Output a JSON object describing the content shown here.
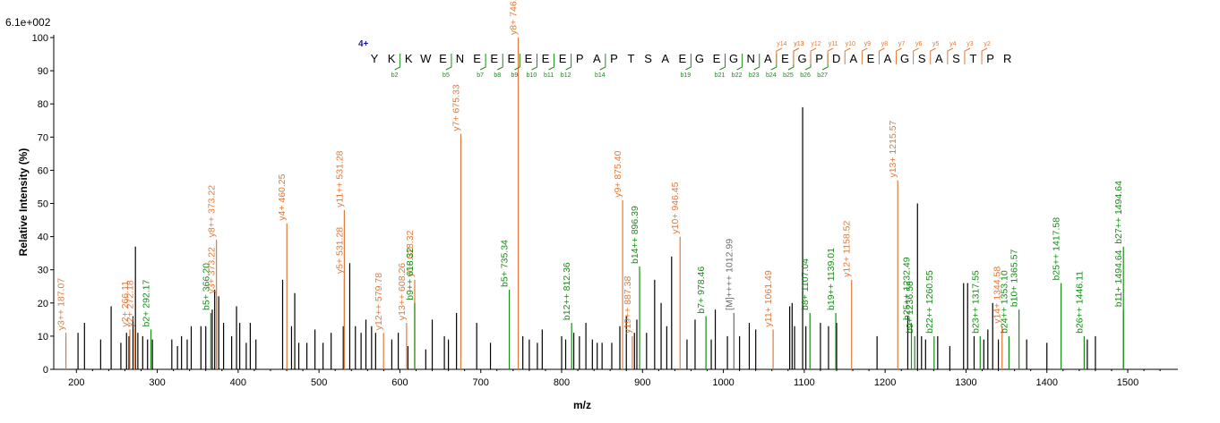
{
  "chart_data": {
    "type": "bar",
    "title": "",
    "xlabel": "m/z",
    "ylabel": "Relative  Intensity (%)",
    "scale_label": "6.1e+002",
    "xlim": [
      172,
      1562
    ],
    "ylim": [
      0,
      100
    ],
    "xticks": [
      200,
      300,
      400,
      500,
      600,
      700,
      800,
      900,
      1000,
      1100,
      1200,
      1300,
      1400,
      1500
    ],
    "yticks": [
      0,
      10,
      20,
      30,
      40,
      50,
      60,
      70,
      80,
      90,
      100
    ],
    "colors": {
      "y": "#e07a3a",
      "b": "#178c17",
      "other": "#000000",
      "precursor": "#6e6e6e",
      "charge": "#1a1aa6"
    },
    "annotated_peaks": [
      {
        "mz": 187.07,
        "intensity": 11,
        "type": "y",
        "label": "y3++ 187.07"
      },
      {
        "mz": 266.11,
        "intensity": 12,
        "type": "y",
        "label": "y2+ 266.11"
      },
      {
        "mz": 272.18,
        "intensity": 12,
        "type": "y",
        "label": "y2+ 272.18"
      },
      {
        "mz": 292.17,
        "intensity": 12,
        "type": "b",
        "label": "b2+ 292.17"
      },
      {
        "mz": 366.2,
        "intensity": 17,
        "type": "b",
        "label": "b5+ 366.20"
      },
      {
        "mz": 373.22,
        "intensity": 22,
        "type": "y",
        "label": "y3+ 373.22"
      },
      {
        "mz": 373.22,
        "intensity": 39,
        "type": "y",
        "label": "y8++ 373.22"
      },
      {
        "mz": 460.25,
        "intensity": 44,
        "type": "y",
        "label": "y4+ 460.25"
      },
      {
        "mz": 531.28,
        "intensity": 28,
        "type": "y",
        "label": "y5+ 531.28"
      },
      {
        "mz": 531.28,
        "intensity": 48,
        "type": "y",
        "label": "y11++ 531.28"
      },
      {
        "mz": 579.78,
        "intensity": 11,
        "type": "y",
        "label": "y12++ 579.78"
      },
      {
        "mz": 608.26,
        "intensity": 14,
        "type": "y",
        "label": "y13++ 608.26"
      },
      {
        "mz": 618.32,
        "intensity": 27,
        "type": "y",
        "label": "y6+ 618.32"
      },
      {
        "mz": 618.32,
        "intensity": 20,
        "type": "b",
        "label": "b9++ 618.32"
      },
      {
        "mz": 675.33,
        "intensity": 71,
        "type": "y",
        "label": "y7+ 675.33"
      },
      {
        "mz": 735.34,
        "intensity": 24,
        "type": "b",
        "label": "b5+ 735.34"
      },
      {
        "mz": 746.35,
        "intensity": 100,
        "type": "y",
        "label": "y8+ 746.35"
      },
      {
        "mz": 812.36,
        "intensity": 14,
        "type": "b",
        "label": "b12++ 812.36"
      },
      {
        "mz": 875.4,
        "intensity": 51,
        "type": "y",
        "label": "y9+ 875.40"
      },
      {
        "mz": 887.38,
        "intensity": 10,
        "type": "y",
        "label": "y19++ 887.38"
      },
      {
        "mz": 896.39,
        "intensity": 31,
        "type": "b",
        "label": "b14++ 896.39"
      },
      {
        "mz": 946.45,
        "intensity": 40,
        "type": "y",
        "label": "y10+ 946.45"
      },
      {
        "mz": 978.46,
        "intensity": 16,
        "type": "b",
        "label": "b7+ 978.46"
      },
      {
        "mz": 1012.99,
        "intensity": 17,
        "type": "precursor",
        "label": "[M]++++ 1012.99"
      },
      {
        "mz": 1061.49,
        "intensity": 12,
        "type": "y",
        "label": "y11+ 1061.49"
      },
      {
        "mz": 1107.04,
        "intensity": 17,
        "type": "b",
        "label": "b8+ 1107.04"
      },
      {
        "mz": 1139.01,
        "intensity": 17,
        "type": "b",
        "label": "b19++ 1139.01"
      },
      {
        "mz": 1158.52,
        "intensity": 27,
        "type": "y",
        "label": "y12+ 1158.52"
      },
      {
        "mz": 1215.57,
        "intensity": 57,
        "type": "y",
        "label": "y13+ 1215.57"
      },
      {
        "mz": 1232.49,
        "intensity": 14,
        "type": "b",
        "label": "b25++ 1232.49"
      },
      {
        "mz": 1236.58,
        "intensity": 10,
        "type": "b",
        "label": "b9+ 1236.58"
      },
      {
        "mz": 1260.55,
        "intensity": 10,
        "type": "b",
        "label": "b22++ 1260.55"
      },
      {
        "mz": 1317.55,
        "intensity": 10,
        "type": "b",
        "label": "b23++ 1317.55"
      },
      {
        "mz": 1344.58,
        "intensity": 13,
        "type": "y",
        "label": "y14+ 1344.58"
      },
      {
        "mz": 1353.1,
        "intensity": 10,
        "type": "b",
        "label": "b24++ 1353.10"
      },
      {
        "mz": 1365.57,
        "intensity": 18,
        "type": "b",
        "label": "b10+ 1365.57"
      },
      {
        "mz": 1417.58,
        "intensity": 26,
        "type": "b",
        "label": "b25++ 1417.58"
      },
      {
        "mz": 1446.11,
        "intensity": 10,
        "type": "b",
        "label": "b26++ 1446.11"
      },
      {
        "mz": 1494.64,
        "intensity": 18,
        "type": "b",
        "label": "b11+ 1494.64"
      },
      {
        "mz": 1494.64,
        "intensity": 37,
        "type": "b",
        "label": "b27++ 1494.64"
      }
    ],
    "unlabeled_peaks": [
      [
        243,
        19
      ],
      [
        255,
        8
      ],
      [
        262,
        11
      ],
      [
        265,
        10
      ],
      [
        270,
        16
      ],
      [
        273,
        37
      ],
      [
        276,
        11
      ],
      [
        282,
        10
      ],
      [
        288,
        9
      ],
      [
        294,
        9
      ],
      [
        202,
        11
      ],
      [
        210,
        14
      ],
      [
        230,
        9
      ],
      [
        318,
        9
      ],
      [
        325,
        7
      ],
      [
        330,
        10
      ],
      [
        337,
        9
      ],
      [
        342,
        13
      ],
      [
        354,
        13
      ],
      [
        360,
        13
      ],
      [
        368,
        18
      ],
      [
        371,
        24
      ],
      [
        376,
        22
      ],
      [
        382,
        14
      ],
      [
        392,
        10
      ],
      [
        398,
        19
      ],
      [
        402,
        14
      ],
      [
        410,
        8
      ],
      [
        415,
        14
      ],
      [
        422,
        9
      ],
      [
        455,
        27
      ],
      [
        466,
        13
      ],
      [
        470,
        23
      ],
      [
        475,
        8
      ],
      [
        485,
        8
      ],
      [
        495,
        12
      ],
      [
        505,
        8
      ],
      [
        515,
        11
      ],
      [
        530,
        13
      ],
      [
        538,
        32
      ],
      [
        545,
        13
      ],
      [
        552,
        11
      ],
      [
        558,
        15
      ],
      [
        565,
        13
      ],
      [
        570,
        11
      ],
      [
        590,
        9
      ],
      [
        598,
        11
      ],
      [
        610,
        7
      ],
      [
        632,
        6
      ],
      [
        640,
        15
      ],
      [
        655,
        10
      ],
      [
        660,
        9
      ],
      [
        670,
        17
      ],
      [
        695,
        14
      ],
      [
        712,
        8
      ],
      [
        752,
        10
      ],
      [
        760,
        9
      ],
      [
        770,
        8
      ],
      [
        776,
        12
      ],
      [
        800,
        10
      ],
      [
        805,
        9
      ],
      [
        815,
        11
      ],
      [
        822,
        10
      ],
      [
        830,
        14
      ],
      [
        838,
        9
      ],
      [
        844,
        8
      ],
      [
        850,
        8
      ],
      [
        862,
        8
      ],
      [
        872,
        13
      ],
      [
        880,
        16
      ],
      [
        890,
        11
      ],
      [
        893,
        15
      ],
      [
        905,
        11
      ],
      [
        915,
        27
      ],
      [
        923,
        20
      ],
      [
        930,
        13
      ],
      [
        936,
        34
      ],
      [
        955,
        9
      ],
      [
        965,
        15
      ],
      [
        985,
        9
      ],
      [
        990,
        18
      ],
      [
        1005,
        10
      ],
      [
        1020,
        10
      ],
      [
        1032,
        14
      ],
      [
        1040,
        12
      ],
      [
        1082,
        19
      ],
      [
        1085,
        20
      ],
      [
        1088,
        13
      ],
      [
        1098,
        79
      ],
      [
        1102,
        13
      ],
      [
        1120,
        14
      ],
      [
        1130,
        13
      ],
      [
        1140,
        14
      ],
      [
        1190,
        10
      ],
      [
        1228,
        16
      ],
      [
        1240,
        50
      ],
      [
        1245,
        10
      ],
      [
        1250,
        9
      ],
      [
        1265,
        10
      ],
      [
        1280,
        7
      ],
      [
        1297,
        26
      ],
      [
        1302,
        26
      ],
      [
        1310,
        10
      ],
      [
        1322,
        9
      ],
      [
        1327,
        12
      ],
      [
        1333,
        20
      ],
      [
        1340,
        9
      ],
      [
        1375,
        9
      ],
      [
        1400,
        8
      ],
      [
        1450,
        9
      ],
      [
        1460,
        10
      ]
    ],
    "sequence": {
      "charge": "4+",
      "residues": [
        "Y",
        "K",
        "K",
        "W",
        "E",
        "N",
        "E",
        "E",
        "E",
        "E",
        "E",
        "E",
        "P",
        "A",
        "P",
        "T",
        "S",
        "A",
        "E",
        "G",
        "E",
        "G",
        "N",
        "A",
        "E",
        "G",
        "P",
        "D",
        "A",
        "E",
        "A",
        "G",
        "S",
        "A",
        "S",
        "T",
        "P",
        "R"
      ],
      "b_ions": [
        {
          "label": "b2",
          "index": 2
        },
        {
          "label": "b5",
          "index": 5
        },
        {
          "label": "b7",
          "index": 7
        },
        {
          "label": "b8",
          "index": 8
        },
        {
          "label": "b9",
          "index": 9
        },
        {
          "label": "b10",
          "index": 10
        },
        {
          "label": "b11",
          "index": 11
        },
        {
          "label": "b12",
          "index": 12
        },
        {
          "label": "b14",
          "index": 14
        },
        {
          "label": "b19",
          "index": 19
        },
        {
          "label": "b21",
          "index": 21
        },
        {
          "label": "b22",
          "index": 22
        },
        {
          "label": "b23",
          "index": 23
        },
        {
          "label": "b24",
          "index": 24
        },
        {
          "label": "b25",
          "index": 25
        },
        {
          "label": "b26",
          "index": 26
        },
        {
          "label": "b27",
          "index": 27
        }
      ],
      "y_ions": [
        {
          "label": "y13",
          "index": 13
        },
        {
          "label": "y14",
          "index": 14
        },
        {
          "label": "y13",
          "index": 13
        },
        {
          "label": "y12",
          "index": 12
        },
        {
          "label": "y11",
          "index": 11
        },
        {
          "label": "y10",
          "index": 10
        },
        {
          "label": "y9",
          "index": 9
        },
        {
          "label": "y8",
          "index": 8
        },
        {
          "label": "y7",
          "index": 7
        },
        {
          "label": "y6",
          "index": 6
        },
        {
          "label": "y5",
          "index": 5
        },
        {
          "label": "y4",
          "index": 4
        },
        {
          "label": "y3",
          "index": 3
        },
        {
          "label": "y2",
          "index": 2
        }
      ]
    }
  }
}
